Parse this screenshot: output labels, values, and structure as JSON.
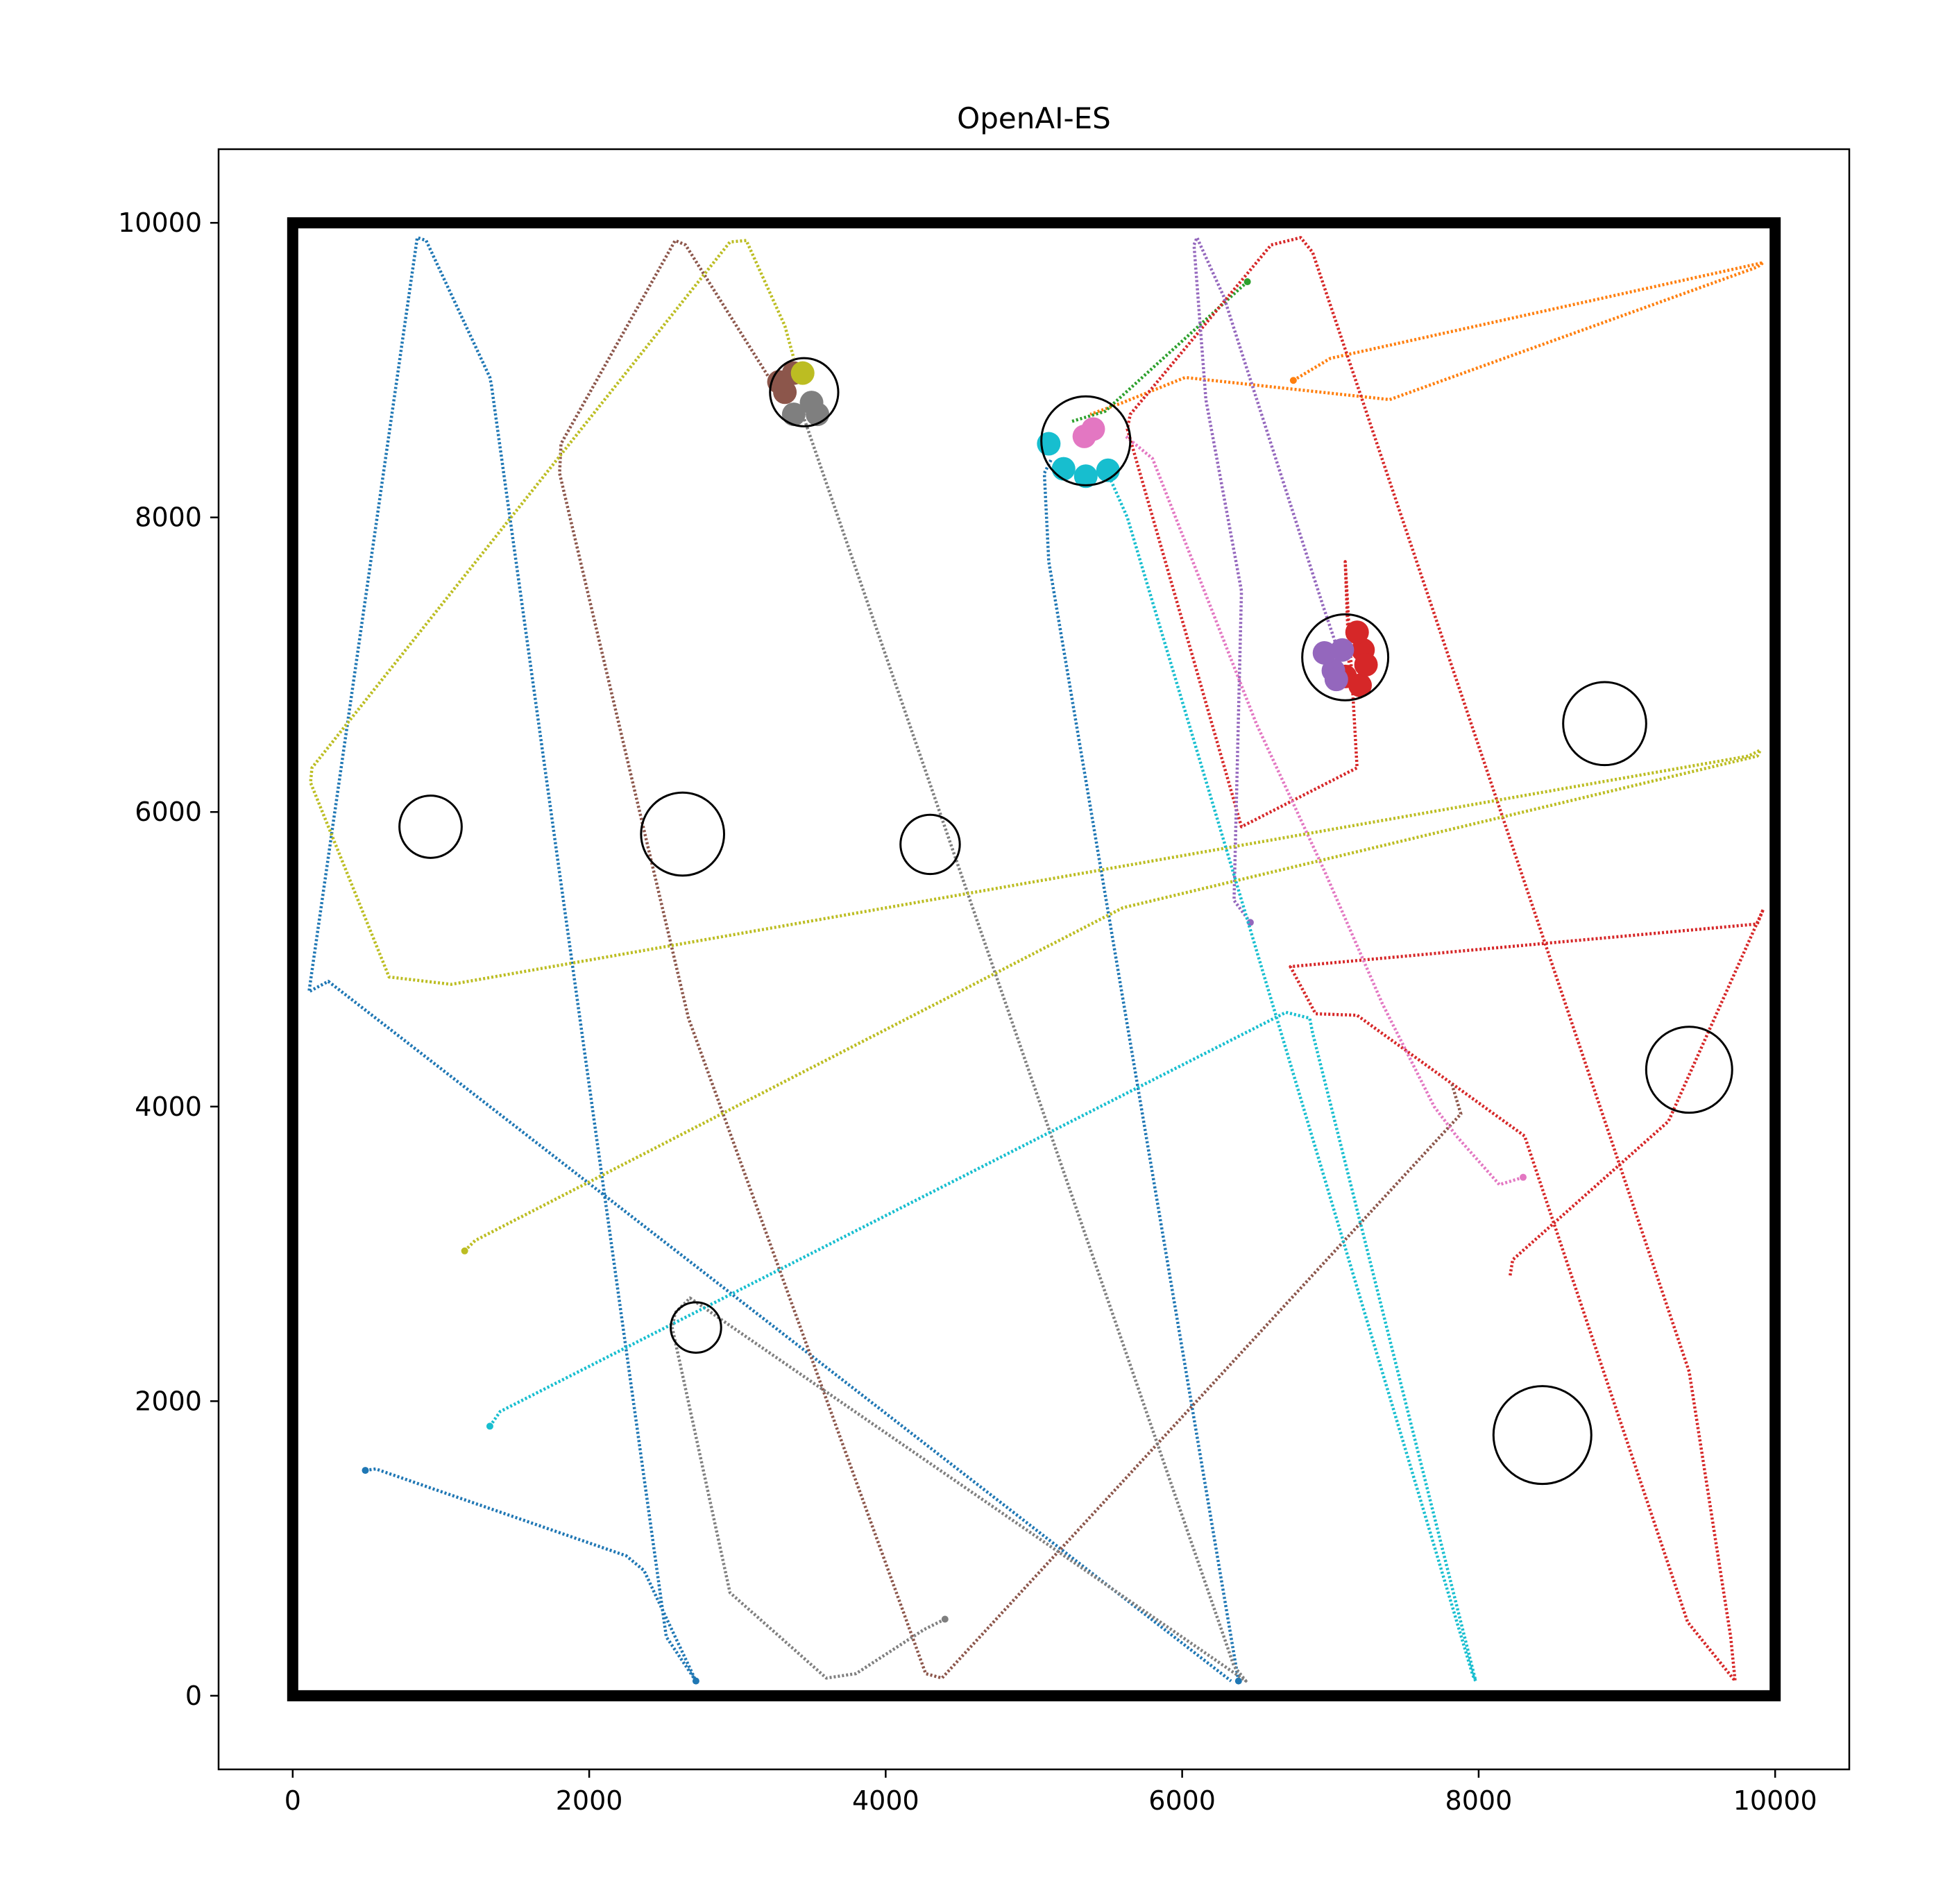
{
  "chart_data": {
    "type": "scatter",
    "title": "OpenAI-ES",
    "xlabel": "",
    "ylabel": "",
    "xlim": [
      -500,
      10500
    ],
    "ylim": [
      -500,
      10500
    ],
    "xticks": [
      0,
      2000,
      4000,
      6000,
      8000,
      10000
    ],
    "yticks": [
      0,
      2000,
      4000,
      6000,
      8000,
      10000
    ],
    "xtick_labels": [
      "0",
      "2000",
      "4000",
      "6000",
      "8000",
      "10000"
    ],
    "ytick_labels": [
      "0",
      "2000",
      "4000",
      "6000",
      "8000",
      "10000"
    ],
    "grid": false,
    "legend": "none",
    "arena": {
      "x": [
        0,
        10000
      ],
      "y": [
        0,
        10000
      ],
      "color": "#000000"
    },
    "obstacles": [
      {
        "x": 3450,
        "y": 8850,
        "r": 230
      },
      {
        "x": 5350,
        "y": 8520,
        "r": 300
      },
      {
        "x": 7100,
        "y": 7050,
        "r": 290
      },
      {
        "x": 8850,
        "y": 6600,
        "r": 280
      },
      {
        "x": 930,
        "y": 5900,
        "r": 210
      },
      {
        "x": 2630,
        "y": 5850,
        "r": 280
      },
      {
        "x": 4300,
        "y": 5780,
        "r": 200
      },
      {
        "x": 9420,
        "y": 4250,
        "r": 290
      },
      {
        "x": 2720,
        "y": 2500,
        "r": 170
      },
      {
        "x": 8430,
        "y": 1770,
        "r": 330
      }
    ],
    "series": [
      {
        "color": "#1f77b4",
        "x": [
          6380,
          5100,
          5070,
          5120
        ],
        "y": [
          100,
          7700,
          8300,
          8400
        ]
      },
      {
        "color": "#1f77b4",
        "x": [
          2720,
          2520,
          1340,
          1330,
          900,
          840,
          110,
          240,
          6330
        ],
        "y": [
          100,
          400,
          8900,
          8950,
          9880,
          9900,
          4780,
          4850,
          100
        ]
      },
      {
        "color": "#1f77b4",
        "x": [
          490,
          560,
          2250,
          2370,
          2720
        ],
        "y": [
          1530,
          1540,
          950,
          850,
          100
        ]
      },
      {
        "color": "#ff7f0e",
        "x": [
          6750,
          7000,
          9920,
          9880,
          7400,
          6020,
          5600,
          5380
        ],
        "y": [
          8930,
          9080,
          9730,
          9700,
          8800,
          8950,
          8780,
          8700
        ]
      },
      {
        "color": "#2ca02c",
        "x": [
          6440,
          5480,
          5250
        ],
        "y": [
          9600,
          8720,
          8650
        ]
      },
      {
        "color": "#d62728",
        "x": [
          7130,
          7100,
          7180,
          6400,
          5630,
          5650,
          6600,
          6800,
          6880,
          9420,
          9700,
          9730,
          9410,
          8310,
          7180,
          6900,
          6730,
          9880,
          9920,
          9280,
          8230,
          8210
        ],
        "y": [
          6900,
          7700,
          6300,
          5900,
          8600,
          8700,
          9850,
          9900,
          9800,
          2200,
          400,
          100,
          500,
          3800,
          4620,
          4630,
          4950,
          5240,
          5340,
          3900,
          2960,
          2840
        ],
        "markers": [
          [
            7220,
            7100
          ],
          [
            7100,
            6920
          ],
          [
            7200,
            6860
          ],
          [
            7240,
            7000
          ],
          [
            7180,
            7220
          ]
        ]
      },
      {
        "color": "#9467bd",
        "x": [
          6460,
          6350,
          6400,
          6160,
          6080,
          6100,
          6280,
          6950,
          7050
        ],
        "y": [
          5250,
          5400,
          7500,
          8800,
          9850,
          9900,
          9500,
          7400,
          7100
        ],
        "markers": [
          [
            7020,
            6960
          ],
          [
            6960,
            7080
          ],
          [
            7040,
            6900
          ],
          [
            7080,
            7100
          ]
        ]
      },
      {
        "color": "#8c564b",
        "x": [
          3250,
          2650,
          2580,
          1810,
          1800,
          2670,
          4270,
          4380,
          7880,
          7820
        ],
        "y": [
          8890,
          9850,
          9880,
          8500,
          8300,
          4600,
          150,
          120,
          3950,
          4150
        ],
        "markers": [
          [
            3320,
            8850
          ],
          [
            3280,
            8920
          ],
          [
            3380,
            8980
          ]
        ]
      },
      {
        "color": "#e377c2",
        "x": [
          8300,
          8140,
          7850,
          7700,
          7350,
          6960,
          6500,
          5800,
          5620
        ],
        "y": [
          3520,
          3470,
          3800,
          4000,
          4700,
          5600,
          6600,
          8400,
          8550
        ],
        "markers": [
          [
            5340,
            8550
          ],
          [
            5400,
            8600
          ]
        ]
      },
      {
        "color": "#7f7f7f",
        "x": [
          4400,
          4260,
          3800,
          3600,
          2950,
          2560,
          2580,
          2680,
          6430,
          6350,
          3440
        ],
        "y": [
          520,
          450,
          150,
          120,
          700,
          2500,
          2600,
          2700,
          100,
          200,
          8700
        ],
        "markers": [
          [
            3380,
            8700
          ],
          [
            3540,
            8700
          ],
          [
            3500,
            8780
          ]
        ]
      },
      {
        "color": "#bcbd22",
        "x": [
          1160,
          1230,
          5600,
          9880,
          9900,
          9820,
          1070,
          650,
          120,
          130,
          2950,
          3060,
          3320,
          3380
        ],
        "y": [
          3020,
          3090,
          5350,
          6380,
          6420,
          6380,
          4830,
          4880,
          6200,
          6300,
          9870,
          9880,
          9300,
          9080
        ],
        "markers": [
          [
            3440,
            8980
          ]
        ]
      },
      {
        "color": "#17becf",
        "x": [
          1330,
          1400,
          6700,
          6860,
          6880,
          7980,
          7960,
          5630,
          5520
        ],
        "y": [
          1830,
          1930,
          4640,
          4600,
          4500,
          100,
          140,
          8000,
          8250
        ],
        "markers": [
          [
            5100,
            8500
          ],
          [
            5200,
            8330
          ],
          [
            5350,
            8280
          ],
          [
            5500,
            8320
          ]
        ]
      }
    ]
  }
}
